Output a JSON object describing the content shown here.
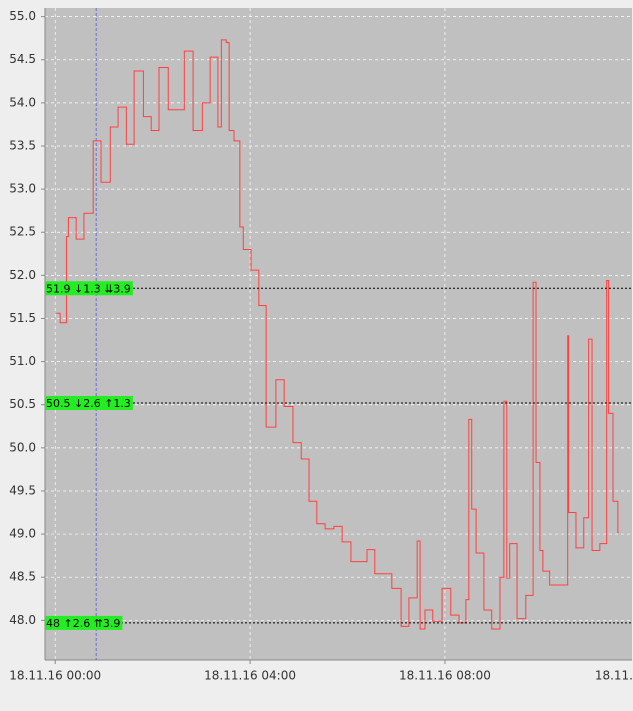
{
  "chart_data": {
    "type": "step-line",
    "x": [
      0.02,
      0.1,
      0.23,
      0.27,
      0.43,
      0.59,
      0.78,
      0.94,
      1.13,
      1.29,
      1.46,
      1.62,
      1.81,
      1.97,
      2.13,
      2.32,
      2.65,
      2.83,
      3.02,
      3.18,
      3.34,
      3.41,
      3.51,
      3.57,
      3.67,
      3.79,
      3.86,
      4.02,
      4.18,
      4.33,
      4.53,
      4.7,
      4.88,
      5.05,
      5.21,
      5.37,
      5.54,
      5.72,
      5.89,
      6.07,
      6.4,
      6.56,
      6.91,
      7.1,
      7.26,
      7.43,
      7.49,
      7.59,
      7.75,
      7.94,
      8.12,
      8.29,
      8.43,
      8.49,
      8.55,
      8.64,
      8.8,
      8.96,
      9.13,
      9.21,
      9.27,
      9.33,
      9.48,
      9.66,
      9.81,
      9.87,
      9.95,
      10.01,
      10.15,
      10.48,
      10.52,
      10.54,
      10.69,
      10.85,
      10.95,
      11.02,
      11.18,
      11.32,
      11.36,
      11.45,
      11.55,
      11.57
    ],
    "values": [
      51.56,
      51.45,
      52.45,
      52.67,
      52.42,
      52.72,
      53.56,
      53.08,
      53.72,
      53.95,
      53.52,
      54.37,
      53.84,
      53.68,
      54.41,
      53.92,
      54.6,
      53.68,
      54.0,
      54.53,
      53.72,
      54.73,
      54.7,
      53.68,
      53.56,
      52.56,
      52.3,
      52.06,
      51.65,
      50.24,
      50.79,
      50.48,
      50.06,
      49.87,
      49.38,
      49.12,
      49.06,
      49.09,
      48.91,
      48.68,
      48.82,
      48.54,
      48.37,
      47.93,
      48.26,
      48.92,
      47.9,
      48.12,
      47.99,
      48.37,
      48.06,
      47.97,
      48.24,
      50.33,
      49.29,
      48.78,
      48.12,
      47.9,
      48.5,
      50.54,
      48.49,
      48.89,
      48.02,
      48.29,
      51.92,
      49.83,
      48.81,
      48.57,
      48.41,
      48.41,
      51.3,
      49.25,
      48.84,
      49.19,
      51.26,
      48.81,
      48.89,
      51.94,
      50.4,
      49.38,
      49.02,
      49.02
    ],
    "color": "#ff4040",
    "xlim": [
      -0.21,
      11.84
    ],
    "xticks": [
      {
        "value": 0,
        "label": "18.11.16 00:00"
      },
      {
        "value": 4,
        "label": "18.11.16 04:00"
      },
      {
        "value": 8,
        "label": "18.11.16 08:00"
      },
      {
        "value": 12,
        "label": "18.11."
      }
    ],
    "ylim": [
      47.54,
      55.1
    ],
    "yticks": [
      {
        "value": 48,
        "label": "48.0"
      },
      48.5,
      {
        "value": 49,
        "label": "49.0"
      },
      49.5,
      {
        "value": 50,
        "label": "50.0"
      },
      50.5,
      {
        "value": 51,
        "label": "51.0"
      },
      51.5,
      {
        "value": 52,
        "label": "52.0"
      },
      52.5,
      {
        "value": 53,
        "label": "53.0"
      },
      53.5,
      {
        "value": 54,
        "label": "54.0"
      },
      54.5,
      {
        "value": 55,
        "label": "55.0"
      }
    ],
    "grid": true,
    "levels": [
      {
        "value": 51.85,
        "label": "51.9 ↓1.3 ⇊3.9"
      },
      {
        "value": 50.52,
        "label": "50.5 ↓2.6 ↑1.3"
      },
      {
        "value": 47.97,
        "label": "48 ↑2.6 ⇈3.9"
      }
    ],
    "level_color": "#22ee22",
    "marker_x": 0.84,
    "marker_color": "#5555dd"
  }
}
